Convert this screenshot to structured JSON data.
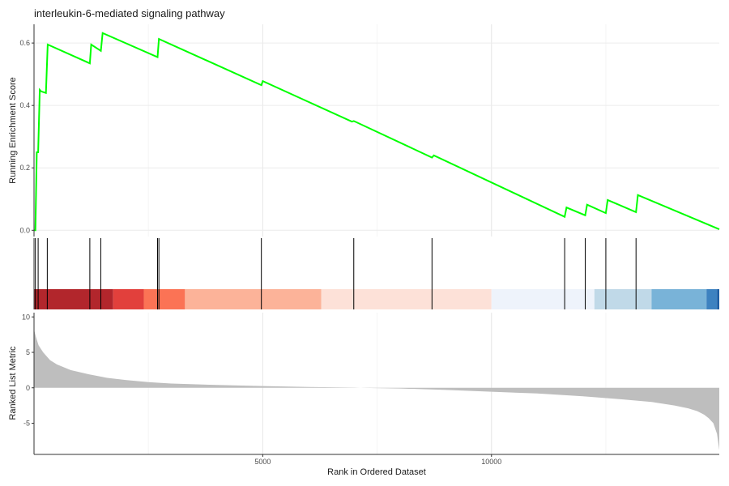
{
  "chart_data": {
    "type": "line",
    "title": "interleukin-6-mediated signaling pathway",
    "xlabel": "Rank in Ordered Dataset",
    "xlim": [
      0,
      14980
    ],
    "x_ticks": [
      "5000",
      "10000"
    ],
    "x_tick_values": [
      5000,
      10000
    ],
    "panels": {
      "enrichment": {
        "ylabel": "Running Enrichment Score",
        "ylim": [
          -0.02,
          0.66
        ],
        "y_ticks": [
          "0.0",
          "0.2",
          "0.4",
          "0.6"
        ],
        "y_tick_values": [
          0.0,
          0.2,
          0.4,
          0.6
        ],
        "line_color": "#00ff00",
        "series": [
          {
            "x": [
              0,
              30,
              60,
              90,
              125,
              155,
              260,
              300,
              1220,
              1250,
              1460,
              1500,
              2700,
              2730,
              4970,
              5000,
              6950,
              6990,
              8700,
              8740,
              11600,
              11640,
              12050,
              12090,
              12500,
              12540,
              13160,
              13200,
              14980
            ],
            "y": [
              0.0,
              0.0,
              0.25,
              0.25,
              0.45,
              0.445,
              0.44,
              0.595,
              0.535,
              0.595,
              0.575,
              0.632,
              0.555,
              0.613,
              0.465,
              0.478,
              0.348,
              0.35,
              0.233,
              0.24,
              0.043,
              0.073,
              0.048,
              0.082,
              0.055,
              0.097,
              0.058,
              0.113,
              0.003
            ]
          }
        ]
      },
      "hits": {
        "gene_positions": [
          30,
          90,
          290,
          1220,
          1460,
          2700,
          2730,
          4970,
          6990,
          8700,
          11600,
          12050,
          12500,
          13160
        ],
        "color_bands": [
          {
            "start": 0,
            "end": 1730,
            "color": "#b2262c"
          },
          {
            "start": 1730,
            "end": 2400,
            "color": "#e2403c"
          },
          {
            "start": 2400,
            "end": 3300,
            "color": "#fb7355"
          },
          {
            "start": 3300,
            "end": 6280,
            "color": "#fcb399"
          },
          {
            "start": 6280,
            "end": 10000,
            "color": "#fde1d8"
          },
          {
            "start": 10000,
            "end": 12250,
            "color": "#eef3fb"
          },
          {
            "start": 12250,
            "end": 13500,
            "color": "#c0d9e8"
          },
          {
            "start": 13500,
            "end": 14700,
            "color": "#79b3d8"
          },
          {
            "start": 14700,
            "end": 14930,
            "color": "#3d82c0"
          },
          {
            "start": 14930,
            "end": 14980,
            "color": "#1e5ea3"
          }
        ]
      },
      "ranked": {
        "ylabel": "Ranked List Metric",
        "ylim": [
          -9.4,
          10.6
        ],
        "y_ticks": [
          "10",
          "5",
          "0",
          "-5"
        ],
        "y_tick_values": [
          10,
          5,
          0,
          -5
        ],
        "fill_color": "#bebebe",
        "series": [
          {
            "x": [
              0,
              40,
              100,
              200,
              350,
              500,
              800,
              1200,
              1600,
              2000,
              2500,
              3000,
              4000,
              5000,
              6000,
              7000,
              7200,
              8000,
              9000,
              10000,
              11000,
              12000,
              12800,
              13500,
              14000,
              14300,
              14500,
              14650,
              14750,
              14850,
              14930,
              14980
            ],
            "y": [
              8.2,
              7.2,
              6.0,
              5.0,
              3.9,
              3.3,
              2.5,
              1.9,
              1.4,
              1.1,
              0.8,
              0.6,
              0.4,
              0.25,
              0.12,
              0.03,
              -0.02,
              -0.1,
              -0.3,
              -0.55,
              -0.8,
              -1.2,
              -1.6,
              -2.0,
              -2.5,
              -2.9,
              -3.3,
              -3.8,
              -4.3,
              -5.0,
              -6.5,
              -8.8
            ]
          }
        ]
      }
    }
  }
}
